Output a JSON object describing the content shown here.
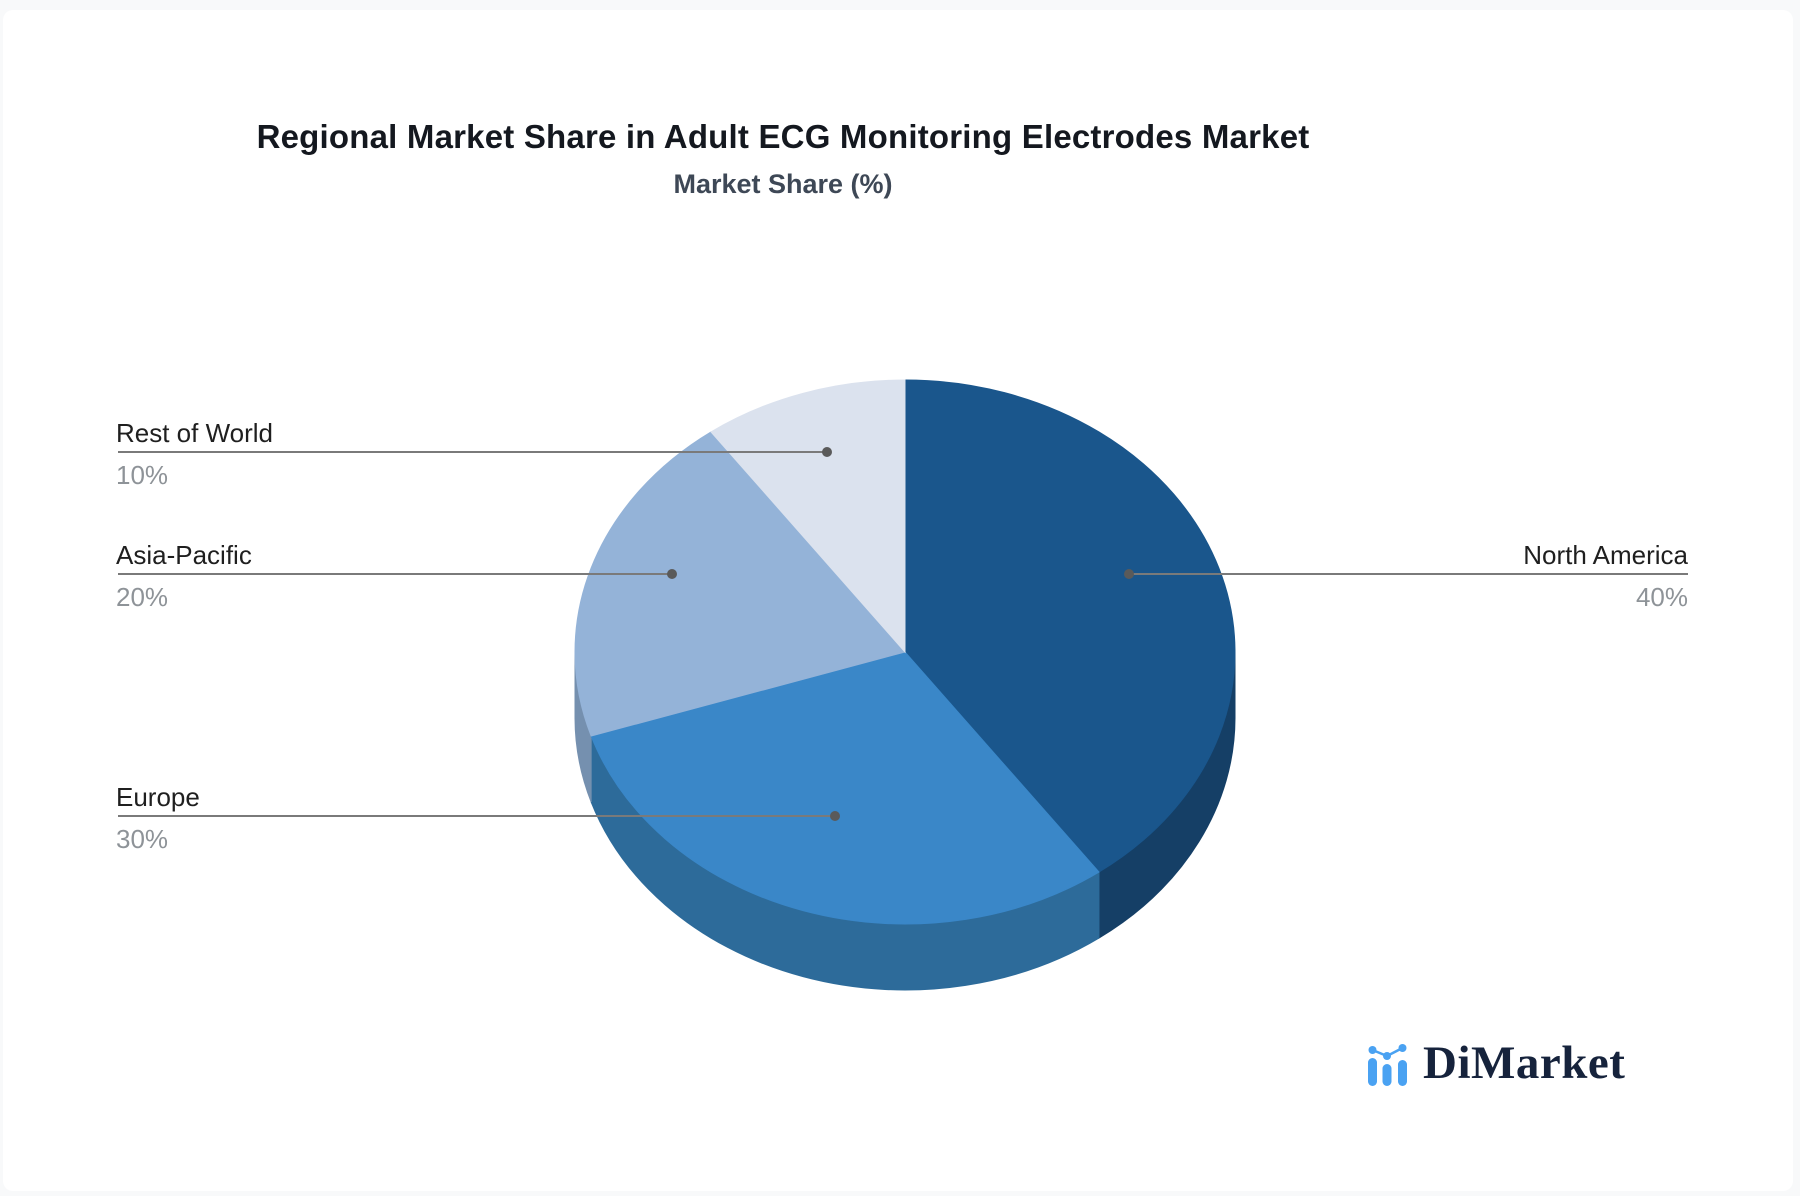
{
  "page": {
    "background_color": "#f8f9fa",
    "card_color": "#ffffff"
  },
  "chart_data": {
    "type": "pie",
    "style": "3d",
    "title": "Regional Market Share in Adult ECG Monitoring Electrodes Market",
    "subtitle": "Market Share (%)",
    "unit": "%",
    "start_angle_deg": 0,
    "direction": "clockwise",
    "legend_position": "callout-labels",
    "slices": [
      {
        "label": "North America",
        "value": 40,
        "display": "40%",
        "color": "#1a568c",
        "side_color": "#153f66"
      },
      {
        "label": "Europe",
        "value": 30,
        "display": "30%",
        "color": "#3a87c8",
        "side_color": "#2d6b9a"
      },
      {
        "label": "Asia-Pacific",
        "value": 20,
        "display": "20%",
        "color": "#94b3d8",
        "side_color": "#7590af"
      },
      {
        "label": "Rest of World",
        "value": 10,
        "display": "10%",
        "color": "#dbe2ee",
        "side_color": "#b9c4d6"
      }
    ],
    "callout_line_color": "#7a7a7a",
    "callout_dot_color": "#5a5a5a",
    "label_color": "#1f1f1f",
    "value_color": "#8e9398"
  },
  "branding": {
    "logo_text": "DiMarket",
    "logo_icon": "bar-chart-icon",
    "logo_text_color": "#16233c",
    "logo_icon_color": "#4aa2f2"
  }
}
